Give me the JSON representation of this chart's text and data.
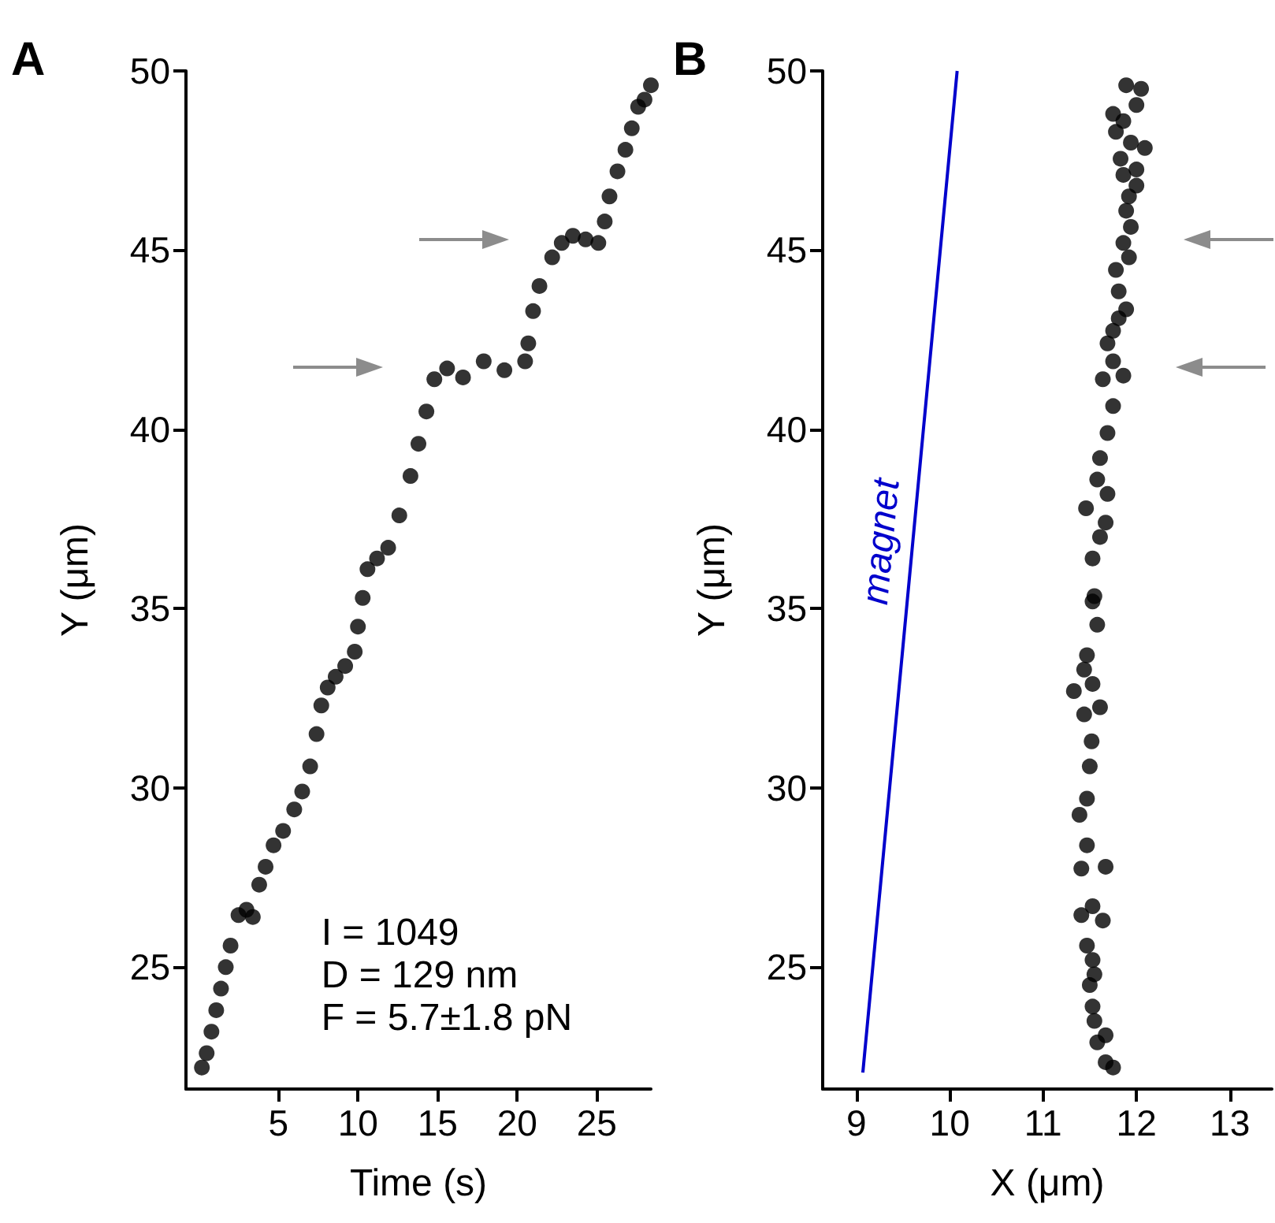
{
  "chart_data": [
    {
      "type": "scatter",
      "title": "A",
      "xlabel": "Time (s)",
      "ylabel": "Y (μm)",
      "annotations": [
        "I = 1049",
        "D = 129 nm",
        "F = 5.7±1.8 pN"
      ],
      "xlim": [
        -0.8,
        28.4
      ],
      "xticks": [
        5,
        10,
        15,
        20,
        25
      ],
      "ylim": [
        21.6,
        50
      ],
      "yticks": [
        25,
        30,
        35,
        40,
        45,
        50
      ],
      "grid": false,
      "legend": false,
      "marker": "circle",
      "series": [
        {
          "color": "#000000",
          "x": [
            0.2,
            0.5,
            0.8,
            1.1,
            1.4,
            1.7,
            2.0,
            2.5,
            3.0,
            3.4,
            3.8,
            4.2,
            4.7,
            5.3,
            6.0,
            6.5,
            7.0,
            7.4,
            7.7,
            8.1,
            8.6,
            9.2,
            9.8,
            10.0,
            10.3,
            10.6,
            11.2,
            11.9,
            12.6,
            13.3,
            13.8,
            14.3,
            14.8,
            15.6,
            16.6,
            17.9,
            19.2,
            20.5,
            20.7,
            21.0,
            21.4,
            22.2,
            22.8,
            23.5,
            24.3,
            25.1,
            25.5,
            25.8,
            26.3,
            26.8,
            27.2,
            27.6,
            28.0,
            28.4
          ],
          "values": [
            22.2,
            22.6,
            23.2,
            23.8,
            24.4,
            25.0,
            25.6,
            26.45,
            26.6,
            26.4,
            27.3,
            27.8,
            28.4,
            28.8,
            29.4,
            29.9,
            30.6,
            31.5,
            32.3,
            32.8,
            33.1,
            33.4,
            33.8,
            34.5,
            35.3,
            36.1,
            36.4,
            36.7,
            37.6,
            38.7,
            39.6,
            40.5,
            41.4,
            41.7,
            41.45,
            41.9,
            41.65,
            41.9,
            42.4,
            43.3,
            44.0,
            44.8,
            45.2,
            45.4,
            45.3,
            45.2,
            45.8,
            46.5,
            47.2,
            47.8,
            48.4,
            49.0,
            49.2,
            49.6
          ]
        }
      ]
    },
    {
      "type": "scatter",
      "title": "B",
      "xlabel": "X (μm)",
      "ylabel": "Y (μm)",
      "xlim": [
        8.64,
        13.45
      ],
      "xticks": [
        9,
        10,
        11,
        12,
        13
      ],
      "ylim": [
        21.6,
        50
      ],
      "yticks": [
        25,
        30,
        35,
        40,
        45,
        50
      ],
      "grid": false,
      "legend": false,
      "marker": "circle",
      "series": [
        {
          "name": "magnet",
          "type": "line",
          "marker": "none",
          "color": "#0000cc",
          "x": [
            9.07,
            10.08
          ],
          "values": [
            22.06,
            50
          ]
        },
        {
          "color": "#000000",
          "x": [
            11.75,
            11.67,
            11.58,
            11.67,
            11.55,
            11.53,
            11.5,
            11.55,
            11.53,
            11.47,
            11.41,
            11.64,
            11.53,
            11.67,
            11.41,
            11.47,
            11.39,
            11.47,
            11.5,
            11.52,
            11.44,
            11.61,
            11.33,
            11.53,
            11.44,
            11.47,
            11.58,
            11.53,
            11.55,
            11.53,
            11.61,
            11.67,
            11.46,
            11.69,
            11.58,
            11.61,
            11.69,
            11.75,
            11.64,
            11.86,
            11.75,
            11.69,
            11.75,
            11.81,
            11.89,
            11.81,
            11.78,
            11.92,
            11.86,
            11.94,
            11.89,
            11.92,
            12.0,
            11.86,
            12.0,
            11.83,
            12.09,
            11.94,
            11.78,
            11.86,
            11.75,
            12.0,
            12.05,
            11.89
          ],
          "values": [
            22.2,
            22.35,
            22.9,
            23.1,
            23.5,
            23.9,
            24.5,
            24.8,
            25.2,
            25.6,
            26.45,
            26.3,
            26.7,
            27.8,
            27.75,
            28.4,
            29.25,
            29.7,
            30.6,
            31.3,
            32.05,
            32.25,
            32.7,
            32.9,
            33.3,
            33.7,
            34.55,
            35.2,
            35.35,
            36.4,
            37.0,
            37.4,
            37.8,
            38.2,
            38.6,
            39.2,
            39.9,
            40.65,
            41.4,
            41.5,
            41.9,
            42.4,
            42.75,
            43.1,
            43.35,
            43.85,
            44.45,
            44.8,
            45.2,
            45.65,
            46.1,
            46.5,
            46.8,
            47.1,
            47.25,
            47.55,
            47.85,
            48.0,
            48.3,
            48.6,
            48.8,
            49.05,
            49.5,
            49.6
          ]
        }
      ]
    }
  ]
}
